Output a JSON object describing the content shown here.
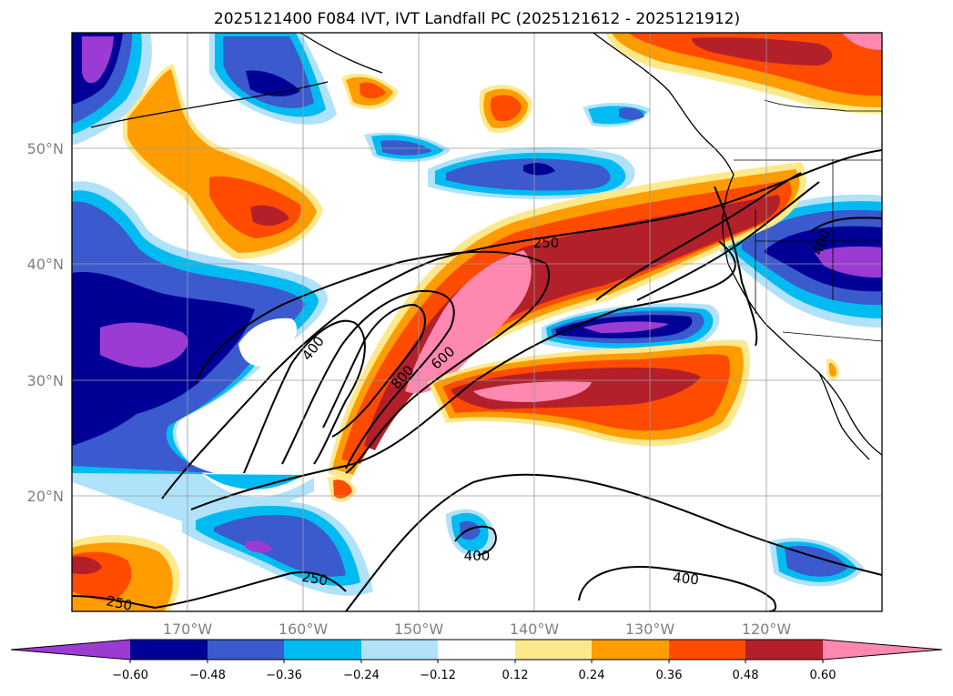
{
  "title": "2025121400 F084 IVT, IVT Landfall PC (2025121612 - 2025121912)",
  "map": {
    "lon_labels": [
      "170°W",
      "160°W",
      "150°W",
      "140°W",
      "130°W",
      "120°W"
    ],
    "lat_labels": [
      "50°N",
      "40°N",
      "30°N",
      "20°N"
    ],
    "extent": {
      "lon": [
        -180,
        -110
      ],
      "lat": [
        10,
        60
      ]
    },
    "gridlines": true
  },
  "contour_labels": [
    "250",
    "400",
    "800",
    "600",
    "400",
    "250",
    "400",
    "250",
    "400"
  ],
  "colorbar": {
    "ticks": [
      "−0.60",
      "−0.48",
      "−0.36",
      "−0.24",
      "−0.12",
      "0.12",
      "0.24",
      "0.36",
      "0.48",
      "0.60"
    ],
    "colors": [
      "#9b3bd4",
      "#000096",
      "#3a5acd",
      "#00bbf2",
      "#b0e2fa",
      "#ffffff",
      "#fde98c",
      "#ff9d00",
      "#fe4b00",
      "#b3202a",
      "#ff88b0"
    ],
    "extend": "both"
  }
}
